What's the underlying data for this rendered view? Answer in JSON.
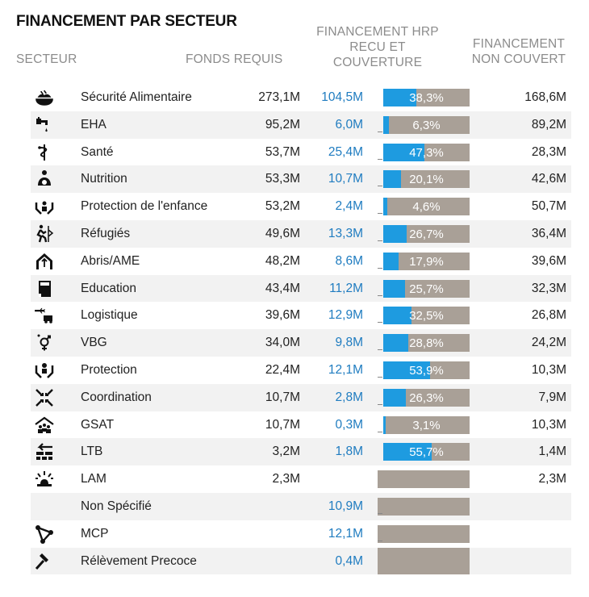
{
  "title": "FINANCEMENT PAR SECTEUR",
  "headers": {
    "secteur": "SECTEUR",
    "fonds_requis": "FONDS REQUIS",
    "financement_hrp": "FINANCEMENT HRP RECU ET COUVERTURE",
    "non_couvert": "FINANCEMENT NON COUVERT"
  },
  "colors": {
    "funded_bar": "#1e9be0",
    "unfunded_bar": "#a9a097",
    "funded_text": "#1f7cc0"
  },
  "rows": [
    {
      "icon": "food-security-icon",
      "name": "Sécurité Alimentaire",
      "requis": "273,1M",
      "recu": "104,5M",
      "pct_label": "38,3%",
      "pct": 38.3,
      "non_couvert": "168,6M"
    },
    {
      "icon": "water-tap-icon",
      "name": "EHA",
      "requis": "95,2M",
      "recu": "6,0M",
      "pct_label": "6,3%",
      "pct": 6.3,
      "non_couvert": "89,2M"
    },
    {
      "icon": "health-icon",
      "name": "Santé",
      "requis": "53,7M",
      "recu": "25,4M",
      "pct_label": "47,3%",
      "pct": 47.3,
      "non_couvert": "28,3M"
    },
    {
      "icon": "nutrition-icon",
      "name": "Nutrition",
      "requis": "53,3M",
      "recu": "10,7M",
      "pct_label": "20,1%",
      "pct": 20.1,
      "non_couvert": "42,6M"
    },
    {
      "icon": "child-protection-icon",
      "name": "Protection de l'enfance",
      "requis": "53,2M",
      "recu": "2,4M",
      "pct_label": "4,6%",
      "pct": 4.6,
      "non_couvert": "50,7M"
    },
    {
      "icon": "refugee-icon",
      "name": "Réfugiés",
      "requis": "49,6M",
      "recu": "13,3M",
      "pct_label": "26,7%",
      "pct": 26.7,
      "non_couvert": "36,4M"
    },
    {
      "icon": "shelter-icon",
      "name": "Abris/AME",
      "requis": "48,2M",
      "recu": "8,6M",
      "pct_label": "17,9%",
      "pct": 17.9,
      "non_couvert": "39,6M"
    },
    {
      "icon": "education-icon",
      "name": "Education",
      "requis": "43,4M",
      "recu": "11,2M",
      "pct_label": "25,7%",
      "pct": 25.7,
      "non_couvert": "32,3M"
    },
    {
      "icon": "logistics-icon",
      "name": "Logistique",
      "requis": "39,6M",
      "recu": "12,9M",
      "pct_label": "32,5%",
      "pct": 32.5,
      "non_couvert": "26,8M"
    },
    {
      "icon": "gender-icon",
      "name": "VBG",
      "requis": "34,0M",
      "recu": "9,8M",
      "pct_label": "28,8%",
      "pct": 28.8,
      "non_couvert": "24,2M"
    },
    {
      "icon": "protection-icon",
      "name": "Protection",
      "requis": "22,4M",
      "recu": "12,1M",
      "pct_label": "53,9%",
      "pct": 53.9,
      "non_couvert": "10,3M"
    },
    {
      "icon": "coordination-icon",
      "name": "Coordination",
      "requis": "10,7M",
      "recu": "2,8M",
      "pct_label": "26,3%",
      "pct": 26.3,
      "non_couvert": "7,9M"
    },
    {
      "icon": "camp-management-icon",
      "name": "GSAT",
      "requis": "10,7M",
      "recu": "0,3M",
      "pct_label": "3,1%",
      "pct": 3.1,
      "non_couvert": "10,3M"
    },
    {
      "icon": "border-icon",
      "name": "LTB",
      "requis": "3,2M",
      "recu": "1,8M",
      "pct_label": "55,7%",
      "pct": 55.7,
      "non_couvert": "1,4M"
    },
    {
      "icon": "emergency-light-icon",
      "name": "LAM",
      "requis": "2,3M",
      "recu": "",
      "pct_label": "",
      "pct": 0,
      "non_couvert": "2,3M"
    },
    {
      "icon": "",
      "name": "Non Spécifié",
      "requis": "",
      "recu": "10,9M",
      "pct_label": "",
      "pct": 0,
      "non_couvert": ""
    },
    {
      "icon": "network-icon",
      "name": "MCP",
      "requis": "",
      "recu": "12,1M",
      "pct_label": "",
      "pct": 0,
      "non_couvert": ""
    },
    {
      "icon": "hammer-icon",
      "name": "Rélèvement Precoce",
      "requis": "",
      "recu": "0,4M",
      "pct_label": "",
      "pct": 0,
      "non_couvert": ""
    }
  ]
}
